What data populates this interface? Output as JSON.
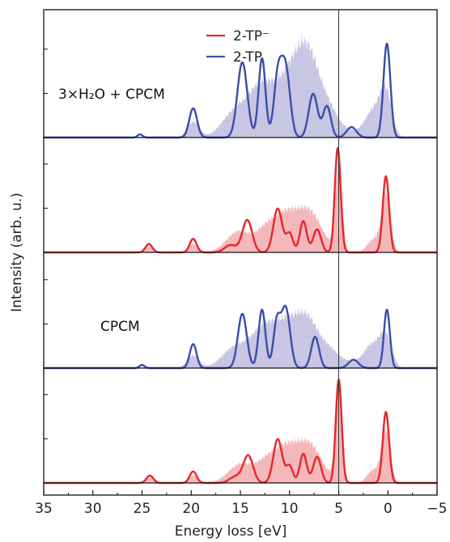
{
  "chart_data": {
    "type": "line",
    "xlabel": "Energy loss [eV]",
    "ylabel": "Intensity (arb. u.)",
    "xlim": [
      35,
      -5
    ],
    "xticks": [
      35,
      30,
      25,
      20,
      15,
      10,
      5,
      0,
      -5
    ],
    "xtick_labels": [
      "35",
      "30",
      "25",
      "20",
      "15",
      "10",
      "5",
      "0",
      "−5"
    ],
    "vline_x": 5,
    "legend": {
      "placement": "top-center",
      "entries": [
        {
          "label": "2-TP⁻",
          "color": "#e8262a"
        },
        {
          "label": "2-TP",
          "color": "#3a4ea8"
        }
      ]
    },
    "annotations": {
      "top": "3×H₂O + CPCM",
      "third": "CPCM"
    },
    "colors": {
      "red": "#e8262a",
      "red_fill": "#f4b8bb",
      "blue": "#3a4ea8",
      "blue_fill": "#c8c6e3"
    },
    "panels": [
      {
        "series": "2-TP",
        "color": "blue",
        "ymax": 1.1,
        "peaks": [
          [
            25.2,
            0.03,
            0.25
          ],
          [
            19.8,
            0.28,
            0.4
          ],
          [
            14.8,
            0.72,
            0.5
          ],
          [
            12.8,
            0.76,
            0.35
          ],
          [
            11.2,
            0.56,
            0.4
          ],
          [
            10.4,
            0.66,
            0.45
          ],
          [
            7.6,
            0.42,
            0.45
          ],
          [
            6.2,
            0.3,
            0.4
          ],
          [
            3.7,
            0.1,
            0.5
          ],
          [
            0.1,
            0.9,
            0.35
          ]
        ],
        "fill_peaks": [
          [
            19.8,
            0.15,
            0.6
          ],
          [
            15.5,
            0.25,
            1.3
          ],
          [
            13.0,
            0.4,
            1.2
          ],
          [
            10.0,
            0.56,
            1.6
          ],
          [
            8.0,
            0.6,
            1.2
          ],
          [
            5.8,
            0.2,
            1.0
          ],
          [
            3.5,
            0.05,
            0.9
          ],
          [
            1.5,
            0.25,
            0.8
          ],
          [
            0.2,
            0.42,
            0.6
          ]
        ]
      },
      {
        "series": "2-TP⁻",
        "color": "red",
        "ymax": 1.1,
        "peaks": [
          [
            24.3,
            0.08,
            0.35
          ],
          [
            19.8,
            0.13,
            0.35
          ],
          [
            16.0,
            0.07,
            0.6
          ],
          [
            14.3,
            0.31,
            0.5
          ],
          [
            11.2,
            0.42,
            0.45
          ],
          [
            10.0,
            0.18,
            0.35
          ],
          [
            8.6,
            0.3,
            0.35
          ],
          [
            7.2,
            0.22,
            0.4
          ],
          [
            5.1,
            1.0,
            0.3
          ],
          [
            0.2,
            0.73,
            0.32
          ]
        ],
        "fill_peaks": [
          [
            24.3,
            0.05,
            0.5
          ],
          [
            19.8,
            0.08,
            0.5
          ],
          [
            15.2,
            0.2,
            1.2
          ],
          [
            12.5,
            0.18,
            1.0
          ],
          [
            10.5,
            0.32,
            1.2
          ],
          [
            8.0,
            0.38,
            1.3
          ],
          [
            5.0,
            0.82,
            0.35
          ],
          [
            1.5,
            0.12,
            0.6
          ],
          [
            0.2,
            0.56,
            0.45
          ]
        ]
      },
      {
        "series": "2-TP",
        "color": "blue",
        "ymax": 1.1,
        "peaks": [
          [
            25.0,
            0.03,
            0.25
          ],
          [
            19.8,
            0.23,
            0.35
          ],
          [
            14.8,
            0.52,
            0.45
          ],
          [
            12.8,
            0.56,
            0.35
          ],
          [
            11.3,
            0.42,
            0.35
          ],
          [
            10.4,
            0.58,
            0.45
          ],
          [
            7.4,
            0.3,
            0.4
          ],
          [
            3.5,
            0.08,
            0.5
          ],
          [
            0.1,
            0.56,
            0.3
          ]
        ],
        "fill_peaks": [
          [
            19.8,
            0.12,
            0.6
          ],
          [
            15.5,
            0.2,
            1.3
          ],
          [
            12.8,
            0.3,
            1.2
          ],
          [
            10.2,
            0.42,
            1.5
          ],
          [
            8.0,
            0.34,
            1.1
          ],
          [
            5.8,
            0.15,
            1.0
          ],
          [
            3.5,
            0.05,
            0.9
          ],
          [
            1.6,
            0.22,
            0.8
          ],
          [
            0.2,
            0.3,
            0.6
          ]
        ]
      },
      {
        "series": "2-TP⁻",
        "color": "red",
        "ymax": 1.1,
        "peaks": [
          [
            24.2,
            0.07,
            0.35
          ],
          [
            19.8,
            0.11,
            0.35
          ],
          [
            15.5,
            0.06,
            0.6
          ],
          [
            14.2,
            0.26,
            0.5
          ],
          [
            11.2,
            0.42,
            0.45
          ],
          [
            10.0,
            0.16,
            0.35
          ],
          [
            8.6,
            0.28,
            0.35
          ],
          [
            7.2,
            0.25,
            0.4
          ],
          [
            5.0,
            0.99,
            0.3
          ],
          [
            0.2,
            0.68,
            0.32
          ]
        ],
        "fill_peaks": [
          [
            24.2,
            0.05,
            0.5
          ],
          [
            19.8,
            0.07,
            0.5
          ],
          [
            15.0,
            0.18,
            1.2
          ],
          [
            12.5,
            0.16,
            1.0
          ],
          [
            10.5,
            0.3,
            1.2
          ],
          [
            8.0,
            0.36,
            1.3
          ],
          [
            5.0,
            0.82,
            0.35
          ],
          [
            1.5,
            0.12,
            0.6
          ],
          [
            0.2,
            0.5,
            0.45
          ]
        ]
      }
    ]
  }
}
